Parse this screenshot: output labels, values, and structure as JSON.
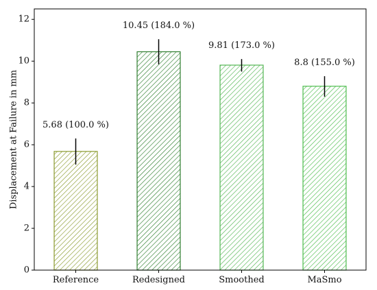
{
  "chart_data": {
    "type": "bar",
    "title": "",
    "xlabel": "",
    "ylabel": "Displacement at Failure in mm",
    "ylim": [
      0,
      12.5
    ],
    "yticks": [
      0,
      2,
      4,
      6,
      8,
      10,
      12
    ],
    "grid": false,
    "legend": "none",
    "bar_fill": "hatched",
    "categories": [
      "Reference",
      "Redesigned",
      "Smoothed",
      "MaSmo"
    ],
    "values": [
      5.68,
      10.45,
      9.81,
      8.8
    ],
    "error_low": [
      5.05,
      9.85,
      9.5,
      8.3
    ],
    "error_high": [
      6.3,
      11.05,
      10.1,
      9.28
    ],
    "data_labels": [
      "5.68 (100.0 %)",
      "10.45 (184.0 %)",
      "9.81 (173.0 %)",
      "8.8 (155.0 %)"
    ],
    "colors": [
      "#8a9a2e",
      "#2e7d2e",
      "#52b552",
      "#4cbc4c"
    ],
    "error_bar_color": "#000000"
  }
}
